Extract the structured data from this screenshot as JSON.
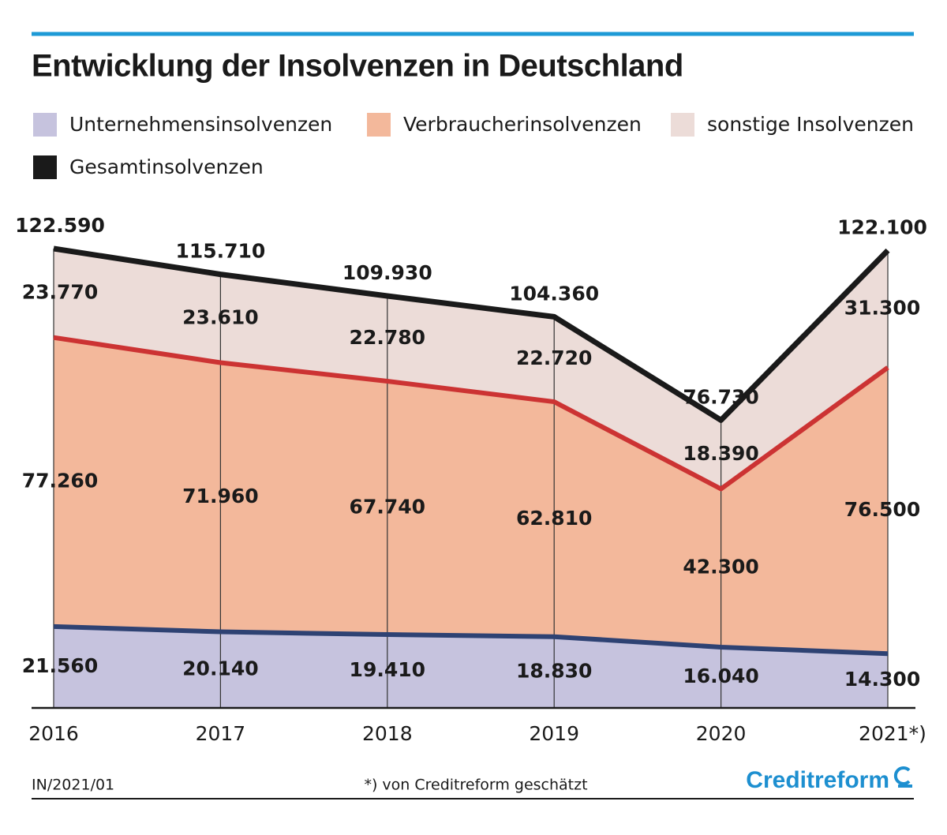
{
  "chart_data": {
    "type": "area",
    "stacked": true,
    "title": "Entwicklung der Insolvenzen in Deutschland",
    "categories": [
      "2016",
      "2017",
      "2018",
      "2019",
      "2020",
      "2021*)"
    ],
    "series": [
      {
        "name": "Unternehmensinsolvenzen",
        "type": "area",
        "color": "#c6c3de",
        "line_color": "#2e4273",
        "values": [
          21560,
          20140,
          19410,
          18830,
          16040,
          14300
        ],
        "value_labels": [
          "21.560",
          "20.140",
          "19.410",
          "18.830",
          "16.040",
          "14.300"
        ]
      },
      {
        "name": "Verbraucherinsolvenzen",
        "type": "area",
        "color": "#f3b89b",
        "line_color": "#cc3333",
        "values": [
          77260,
          71960,
          67740,
          62810,
          42300,
          76500
        ],
        "value_labels": [
          "77.260",
          "71.960",
          "67.740",
          "62.810",
          "42.300",
          "76.500"
        ]
      },
      {
        "name": "sonstige Insolvenzen",
        "type": "area",
        "color": "#ecdcd8",
        "values": [
          23770,
          23610,
          22780,
          22720,
          18390,
          31300
        ],
        "value_labels": [
          "23.770",
          "23.610",
          "22.780",
          "22.720",
          "18.390",
          "31.300"
        ]
      },
      {
        "name": "Gesamtinsolvenzen",
        "type": "line",
        "color": "#1a1a1a",
        "values": [
          122590,
          115710,
          109930,
          104360,
          76730,
          122100
        ],
        "value_labels": [
          "122.590",
          "115.710",
          "109.930",
          "104.360",
          "76.730",
          "122.100"
        ]
      }
    ],
    "grid": true,
    "code": "IN/2021/01",
    "footnote": "*) von Creditreform geschätzt",
    "brand": "Creditreform"
  }
}
